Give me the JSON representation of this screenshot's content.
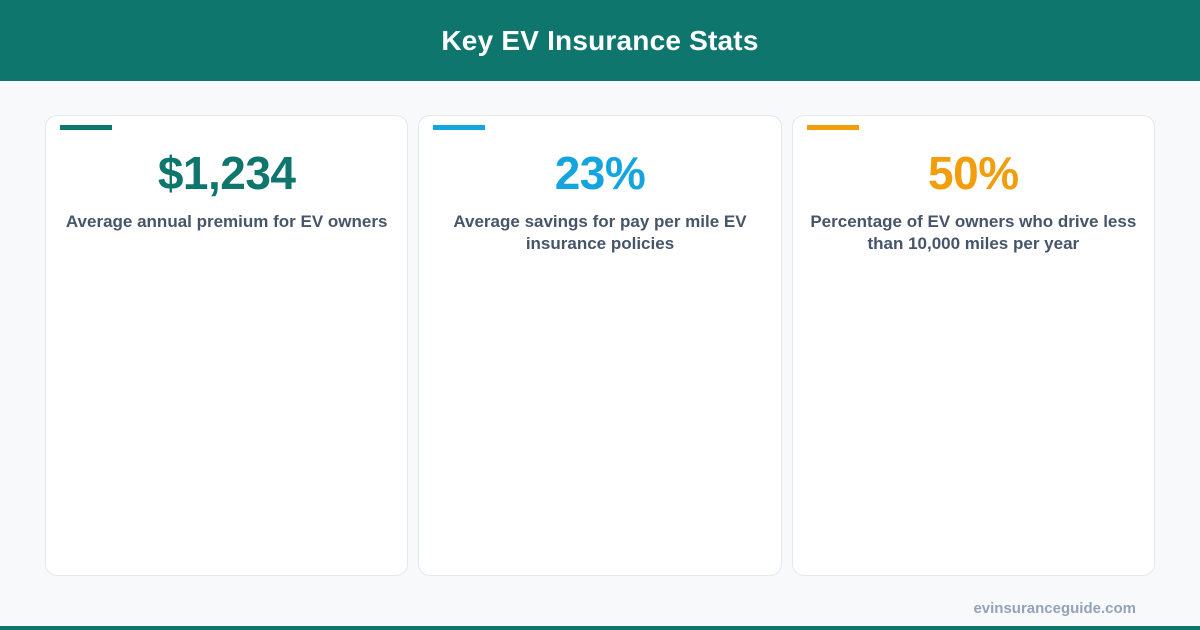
{
  "header": {
    "title": "Key EV Insurance Stats"
  },
  "stats": [
    {
      "value": "$1,234",
      "description": "Average annual premium for EV owners",
      "color": "#0f766e"
    },
    {
      "value": "23%",
      "description": "Average savings for pay per mile EV insurance policies",
      "color": "#14a5de"
    },
    {
      "value": "50%",
      "description": "Percentage of EV owners who drive less than 10,000 miles per year",
      "color": "#f29d0b"
    }
  ],
  "footer": {
    "site": "evinsuranceguide.com"
  },
  "colors": {
    "brand": "#0f766e",
    "background": "#f8f9fb",
    "text": "#475569",
    "muted": "#94a3b8"
  }
}
